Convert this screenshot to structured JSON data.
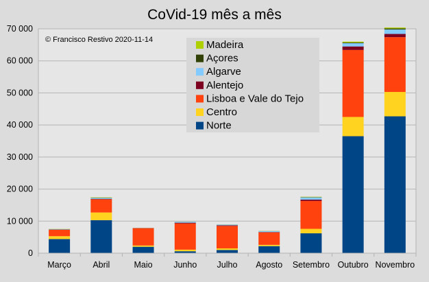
{
  "chart_data": {
    "type": "bar",
    "stacked": true,
    "title": "CoVid-19 mês a mês",
    "annotation": "© Francisco Restivo 2020-11-14",
    "xlabel": "",
    "ylabel": "",
    "ylim": [
      0,
      70000
    ],
    "yticks": [
      0,
      10000,
      20000,
      30000,
      40000,
      50000,
      60000,
      70000
    ],
    "ytick_labels": [
      "0",
      "10 000",
      "20 000",
      "30 000",
      "40 000",
      "50 000",
      "60 000",
      "70 000"
    ],
    "grid": true,
    "legend_position": "top-center",
    "categories": [
      "Março",
      "Abril",
      "Maio",
      "Junho",
      "Julho",
      "Agosto",
      "Setembro",
      "Outubro",
      "Novembro"
    ],
    "series": [
      {
        "name": "Norte",
        "color": "#004586",
        "values": [
          4400,
          10300,
          2000,
          600,
          1000,
          2200,
          6200,
          36500,
          42700
        ]
      },
      {
        "name": "Centro",
        "color": "#ffd320",
        "values": [
          900,
          2400,
          400,
          500,
          500,
          400,
          1400,
          6000,
          7600
        ]
      },
      {
        "name": "Lisboa e Vale do Tejo",
        "color": "#ff420e",
        "values": [
          2000,
          4100,
          5400,
          8200,
          7000,
          3900,
          8700,
          20900,
          17100
        ]
      },
      {
        "name": "Alentejo",
        "color": "#7e0021",
        "values": [
          50,
          100,
          40,
          200,
          200,
          100,
          400,
          1100,
          1000
        ]
      },
      {
        "name": "Algarve",
        "color": "#83caff",
        "values": [
          100,
          300,
          50,
          300,
          200,
          300,
          700,
          1000,
          1400
        ]
      },
      {
        "name": "Açores",
        "color": "#314004",
        "values": [
          50,
          100,
          10,
          10,
          20,
          20,
          100,
          200,
          300
        ]
      },
      {
        "name": "Madeira",
        "color": "#aecf00",
        "values": [
          50,
          100,
          20,
          30,
          30,
          50,
          100,
          300,
          300
        ]
      }
    ],
    "legend_order": [
      "Madeira",
      "Açores",
      "Algarve",
      "Alentejo",
      "Lisboa e Vale do Tejo",
      "Centro",
      "Norte"
    ]
  }
}
